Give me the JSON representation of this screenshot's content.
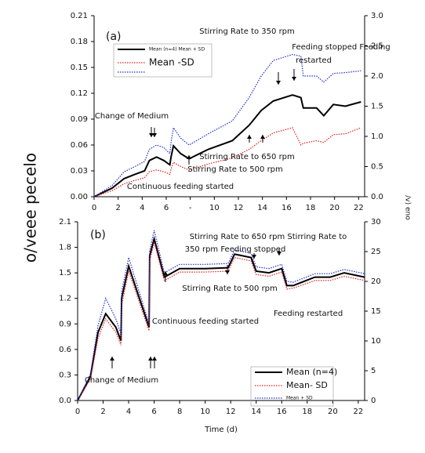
{
  "chart_data": [
    {
      "type": "line",
      "panel": "(a)",
      "ylabel": "o/veee pecelo",
      "y2label": "/v) eno",
      "x": [
        0,
        1.5,
        2.5,
        3.4,
        4.2,
        4.6,
        5.2,
        5.8,
        6.3,
        6.4,
        6.6,
        7.2,
        7.9,
        9.5,
        11.5,
        12.9,
        13.9,
        14.9,
        16.5,
        17.2,
        17.4,
        18.5,
        19.1,
        19.9,
        20.9,
        22.2
      ],
      "xlim": [
        0,
        22.5
      ],
      "xticks": [
        0,
        2,
        4,
        6,
        {
          "value": 8,
          "label": "-"
        },
        10,
        12,
        14,
        16,
        18,
        20,
        22
      ],
      "ylim": [
        0,
        0.21
      ],
      "yticks": [
        {
          "value": 0,
          "label": "0.00"
        },
        0.03,
        0.06,
        0.09,
        0.12,
        0.15,
        0.18,
        0.21
      ],
      "y2lim": [
        0,
        3
      ],
      "y2ticks": [
        {
          "value": 0,
          "label": "0.0"
        },
        0.5,
        {
          "value": 1,
          "label": "1.0"
        },
        1.5,
        {
          "value": 2,
          "label": "2.0"
        },
        2.5,
        {
          "value": 3,
          "label": "3.0"
        }
      ],
      "series": [
        {
          "name": "Mean (n=4) Mean + SD",
          "color": "#000000",
          "style": "solid",
          "values": [
            0,
            0.01,
            0.021,
            0.026,
            0.03,
            0.042,
            0.046,
            0.042,
            0.037,
            0.046,
            0.059,
            0.05,
            0.044,
            0.055,
            0.065,
            0.083,
            0.1,
            0.111,
            0.118,
            0.115,
            0.103,
            0.103,
            0.094,
            0.107,
            0.105,
            0.11
          ]
        },
        {
          "name": "Mean -SD",
          "color": "#e02020",
          "style": "dotted",
          "values": [
            0,
            0.007,
            0.015,
            0.019,
            0.022,
            0.029,
            0.031,
            0.029,
            0.026,
            0.032,
            0.04,
            0.035,
            0.031,
            0.038,
            0.045,
            0.055,
            0.065,
            0.074,
            0.08,
            0.06,
            0.062,
            0.065,
            0.063,
            0.072,
            0.073,
            0.08
          ]
        },
        {
          "color": "#2030d0",
          "style": "dotted",
          "values": [
            0,
            0.013,
            0.029,
            0.035,
            0.041,
            0.055,
            0.06,
            0.057,
            0.05,
            0.063,
            0.08,
            0.068,
            0.06,
            0.073,
            0.088,
            0.115,
            0.14,
            0.158,
            0.165,
            0.163,
            0.14,
            0.14,
            0.133,
            0.143,
            0.144,
            0.146
          ]
        }
      ],
      "annotations": [
        "Change of Medium",
        "Continuous feeding started",
        "Stirring Rate to 500 rpm",
        "Stirring Rate to 650 rpm",
        "Stirring Rate to 350 rpm",
        "Feeding stopped Feeding",
        "restarted"
      ]
    },
    {
      "type": "line",
      "panel": "(b)",
      "xlabel": "Time (d)",
      "x": [
        0,
        1,
        1.6,
        2.2,
        3.0,
        3.4,
        3.45,
        4.0,
        5.6,
        5.65,
        6.0,
        6.8,
        8.0,
        10,
        11.8,
        12.3,
        13.6,
        14.0,
        15.0,
        16.0,
        16.4,
        16.9,
        18.6,
        19.8,
        20.9,
        22.5
      ],
      "xlim": [
        0,
        22.5
      ],
      "xticks": [
        0,
        2,
        4,
        6,
        8,
        10,
        12,
        14,
        16,
        18,
        20,
        22
      ],
      "ylim": [
        0,
        2.1
      ],
      "yticks": [
        {
          "value": 0,
          "label": "0.0"
        },
        0.3,
        0.6,
        0.9,
        1.2,
        1.5,
        1.8,
        2.1
      ],
      "y2lim": [
        0,
        30
      ],
      "y2ticks": [
        0,
        5,
        10,
        15,
        20,
        25,
        30
      ],
      "series": [
        {
          "name": "Mean (n=4)",
          "color": "#000000",
          "style": "solid",
          "values": [
            0,
            0.28,
            0.8,
            1.02,
            0.86,
            0.7,
            1.2,
            1.58,
            0.86,
            1.7,
            1.9,
            1.45,
            1.55,
            1.55,
            1.56,
            1.72,
            1.68,
            1.52,
            1.5,
            1.55,
            1.35,
            1.35,
            1.45,
            1.45,
            1.5,
            1.45
          ]
        },
        {
          "name": "Mean- SD",
          "color": "#e02020",
          "style": "dotted",
          "values": [
            0,
            0.25,
            0.73,
            0.96,
            0.8,
            0.65,
            1.12,
            1.52,
            0.82,
            1.64,
            1.86,
            1.41,
            1.51,
            1.51,
            1.52,
            1.68,
            1.64,
            1.48,
            1.46,
            1.51,
            1.31,
            1.32,
            1.41,
            1.41,
            1.46,
            1.41
          ]
        },
        {
          "name": "Mean + SD",
          "color": "#2030d0",
          "style": "dotted",
          "values": [
            0,
            0.31,
            0.88,
            1.2,
            0.96,
            0.78,
            1.28,
            1.68,
            0.9,
            1.76,
            2.0,
            1.5,
            1.6,
            1.6,
            1.61,
            1.77,
            1.73,
            1.57,
            1.55,
            1.6,
            1.4,
            1.39,
            1.49,
            1.49,
            1.54,
            1.49
          ]
        }
      ],
      "annotations": [
        "Stirring Rate to 650 rpm Stirring Rate to",
        "350 rpm Feeding stopped",
        "Stirring Rate to 500 rpm",
        "Continuous feeding started",
        "Change of Medium",
        "Feeding restarted"
      ]
    }
  ]
}
